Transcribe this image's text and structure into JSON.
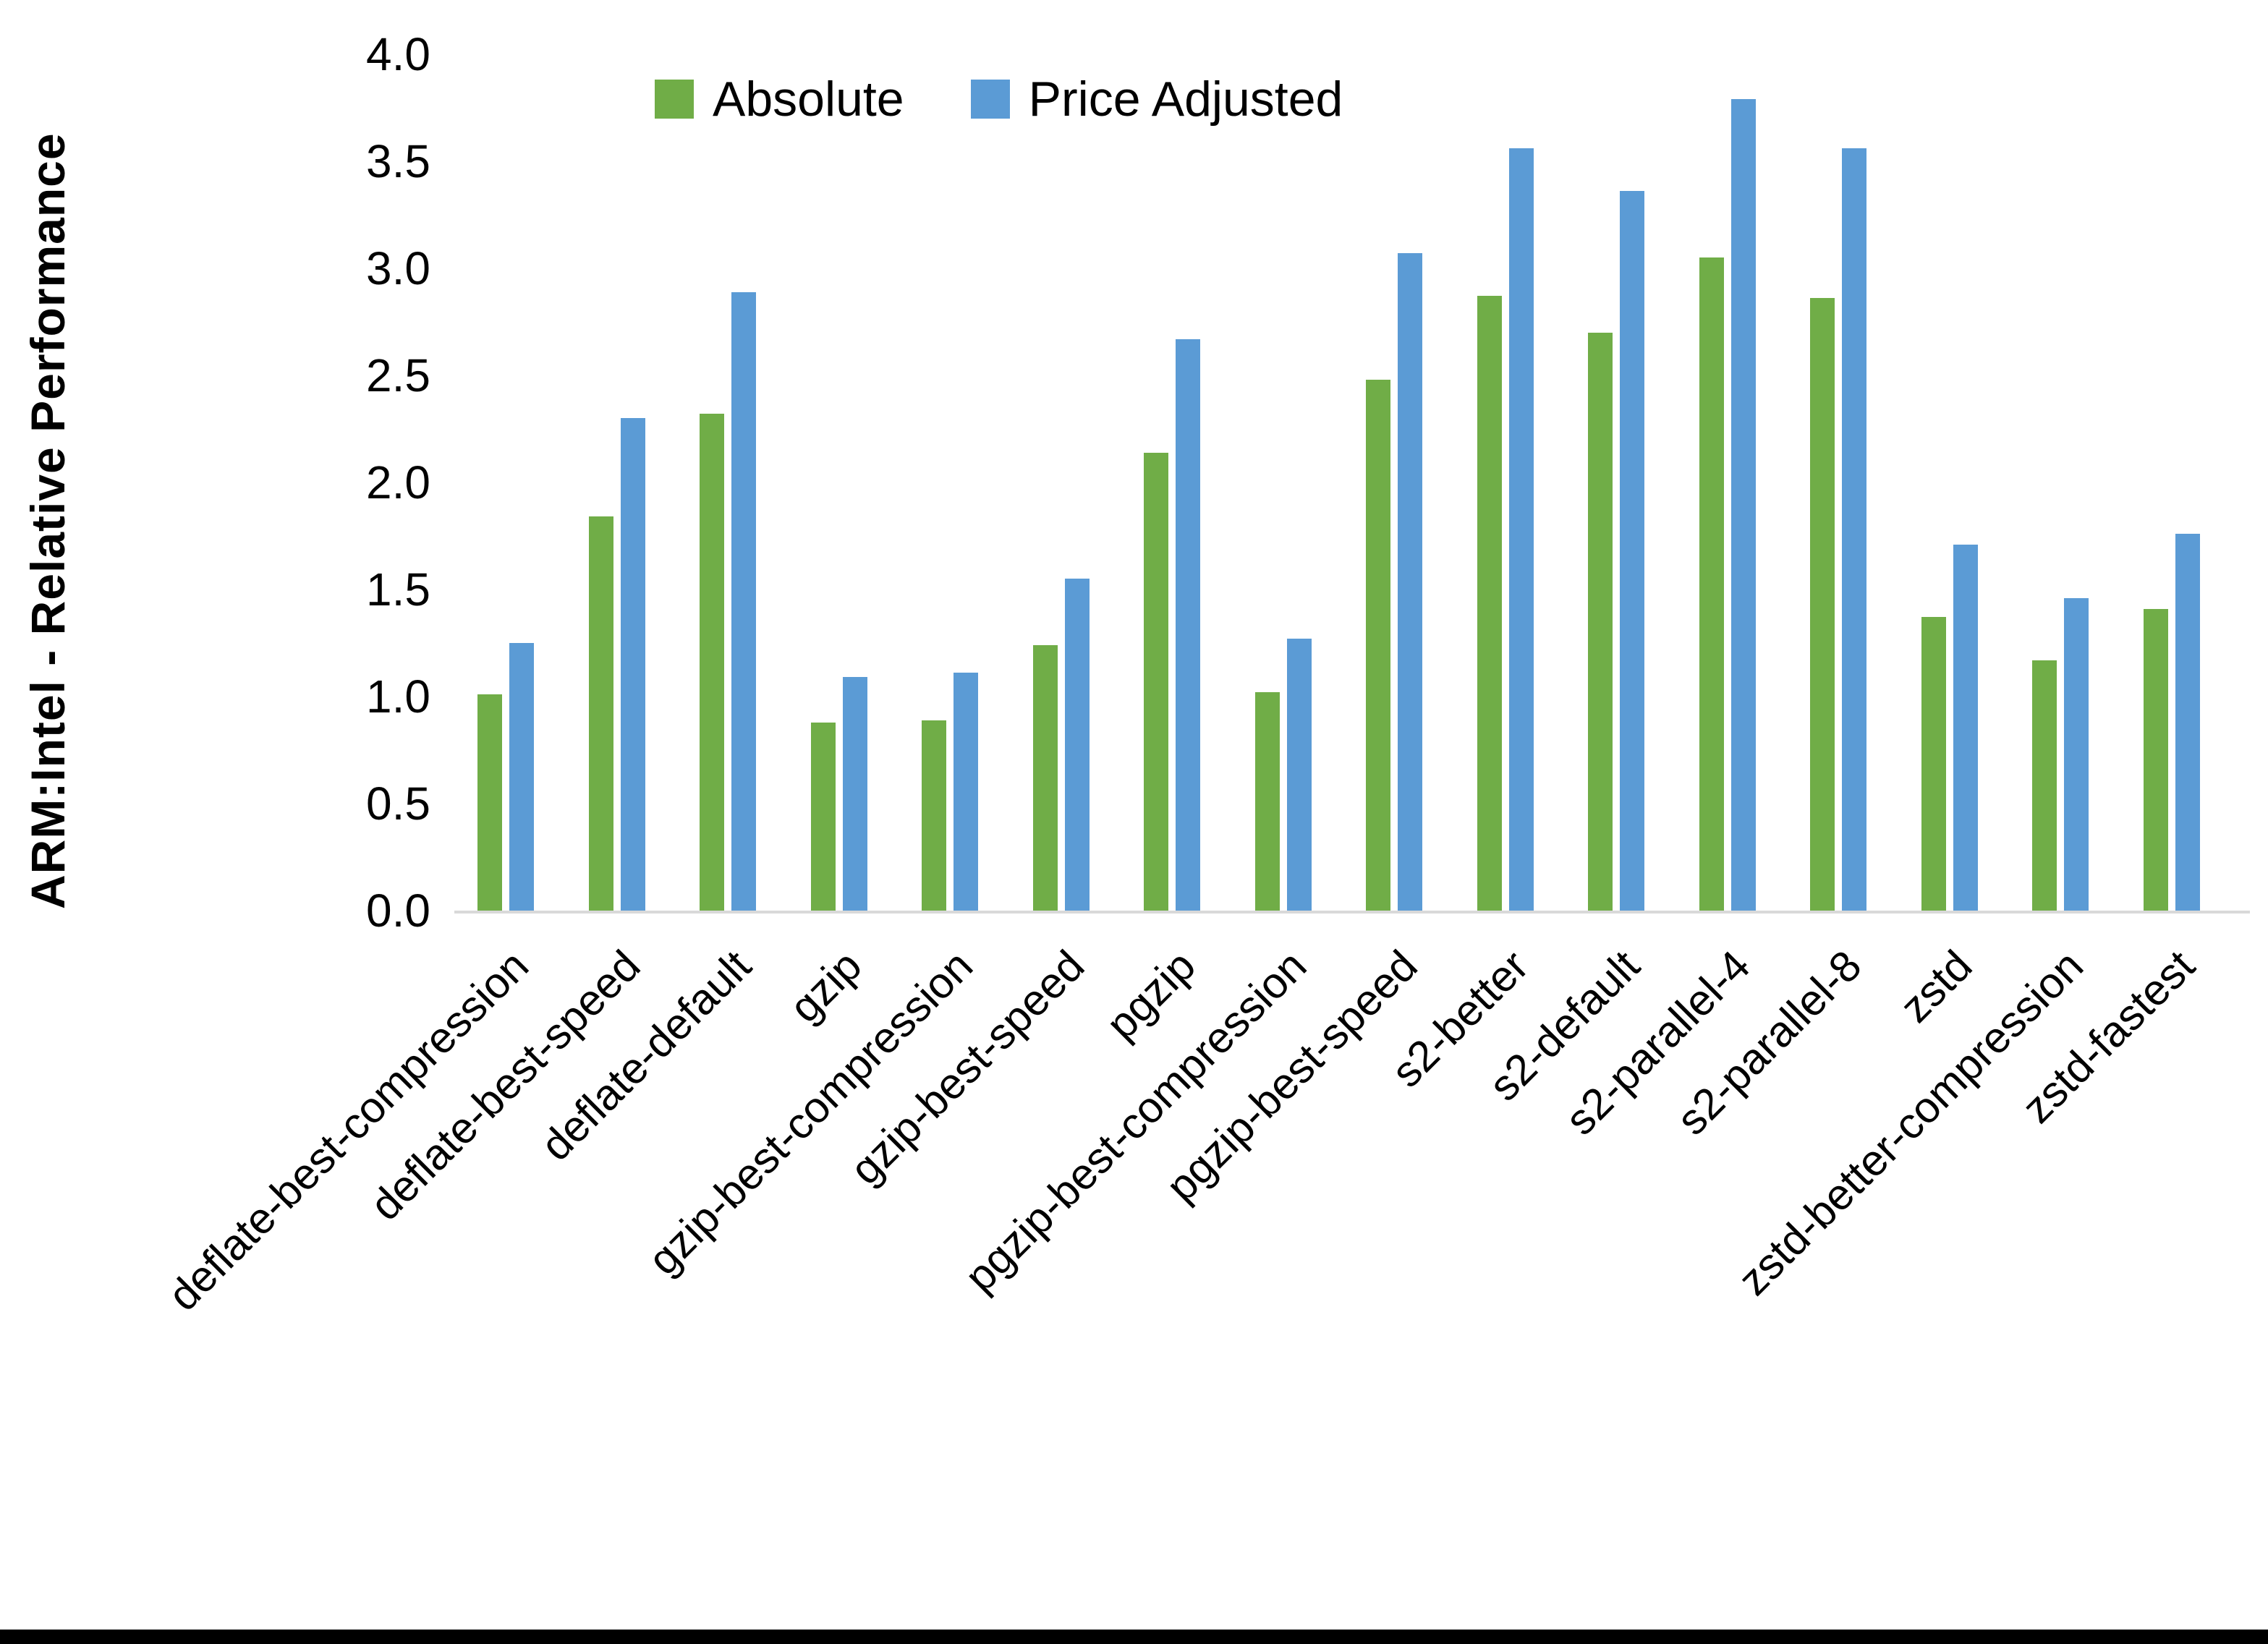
{
  "colors": {
    "absolute": "#70AD47",
    "price_adjusted": "#5B9BD5",
    "axis_line": "#D9D9D9",
    "text": "#000000",
    "background": "#FFFFFF",
    "bottom_bar": "#000000"
  },
  "chart_data": {
    "type": "bar",
    "title": "",
    "xlabel": "",
    "ylabel": "ARM:Intel - Relative Performance",
    "ylim": [
      0.0,
      4.0
    ],
    "yticks": [
      "0.0",
      "0.5",
      "1.0",
      "1.5",
      "2.0",
      "2.5",
      "3.0",
      "3.5",
      "4.0"
    ],
    "grid": false,
    "legend_position": "top-center",
    "categories": [
      "deflate-best-compression",
      "deflate-best-speed",
      "deflate-default",
      "gzip",
      "gzip-best-compression",
      "gzip-best-speed",
      "pgzip",
      "pgzip-best-compression",
      "pgzip-best-speed",
      "s2-better",
      "s2-default",
      "s2-parallel-4",
      "s2-parallel-8",
      "zstd",
      "zstd-better-compression",
      "zstd-fastest"
    ],
    "series": [
      {
        "name": "Absolute",
        "color": "#70AD47",
        "values": [
          1.01,
          1.84,
          2.32,
          0.88,
          0.89,
          1.24,
          2.14,
          1.02,
          2.48,
          2.87,
          2.7,
          3.05,
          2.86,
          1.37,
          1.17,
          1.41
        ]
      },
      {
        "name": "Price Adjusted",
        "color": "#5B9BD5",
        "values": [
          1.25,
          2.3,
          2.89,
          1.09,
          1.11,
          1.55,
          2.67,
          1.27,
          3.07,
          3.56,
          3.36,
          3.79,
          3.56,
          1.71,
          1.46,
          1.76
        ]
      }
    ]
  }
}
